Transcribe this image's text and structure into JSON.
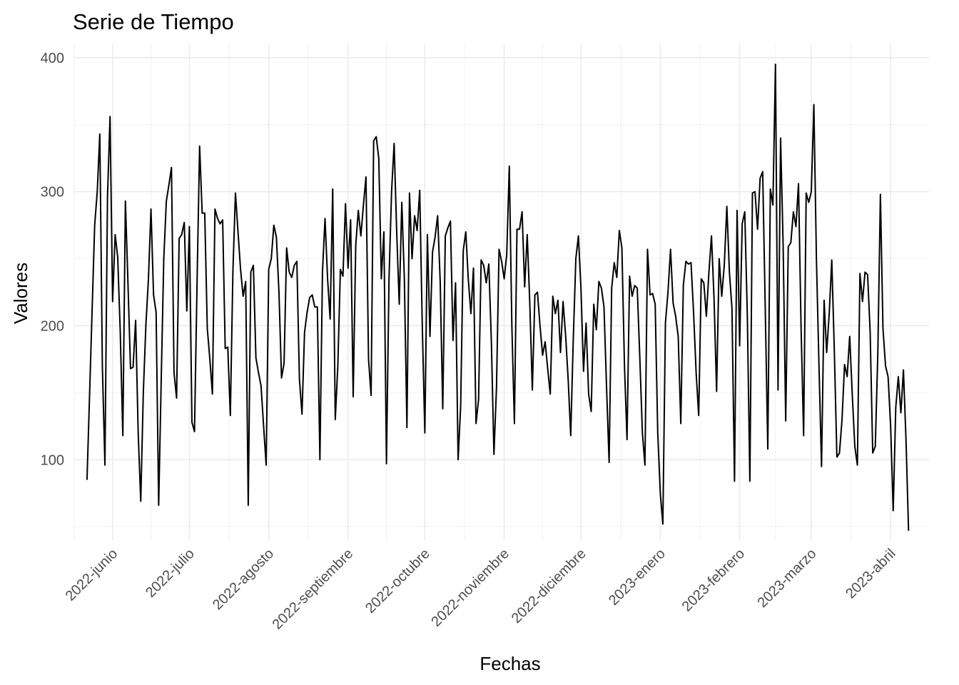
{
  "chart_data": {
    "type": "line",
    "title": "Serie de Tiempo",
    "xlabel": "Fechas",
    "ylabel": "Valores",
    "ylim": [
      40,
      410
    ],
    "yticks": [
      100,
      200,
      300,
      400
    ],
    "grid": true,
    "x_tick_labels": [
      "2022-junio",
      "2022-julio",
      "2022-agosto",
      "2022-septiembre",
      "2022-octubre",
      "2022-noviembre",
      "2022-diciembre",
      "2023-enero",
      "2023-febrero",
      "2023-marzo",
      "2023-abril"
    ],
    "x_tick_dates": [
      "2022-06-01",
      "2022-07-01",
      "2022-08-01",
      "2022-09-01",
      "2022-10-01",
      "2022-11-01",
      "2022-12-01",
      "2023-01-01",
      "2023-02-01",
      "2023-03-01",
      "2023-04-01"
    ],
    "xlim": [
      "2022-05-17",
      "2023-04-16"
    ],
    "series": [
      {
        "x_start": "2022-05-22",
        "step_days": 1,
        "values": [
          85,
          148,
          212,
          275,
          300,
          343,
          170,
          96,
          296,
          356,
          218,
          268,
          251,
          195,
          118,
          293,
          232,
          168,
          169,
          204,
          120,
          69,
          150,
          200,
          235,
          287,
          223,
          210,
          66,
          160,
          250,
          293,
          305,
          318,
          165,
          146,
          265,
          268,
          277,
          211,
          274,
          128,
          121,
          232,
          334,
          284,
          284,
          198,
          175,
          149,
          287,
          280,
          276,
          279,
          183,
          184,
          133,
          240,
          299,
          270,
          242,
          222,
          233,
          66,
          240,
          245,
          176,
          165,
          155,
          125,
          96,
          242,
          250,
          275,
          266,
          225,
          161,
          172,
          258,
          240,
          236,
          245,
          248,
          160,
          134,
          195,
          210,
          221,
          223,
          214,
          214,
          100,
          240,
          280,
          235,
          205,
          302,
          130,
          170,
          242,
          237,
          291,
          243,
          279,
          147,
          260,
          286,
          267,
          290,
          311,
          175,
          148,
          338,
          341,
          325,
          235,
          270,
          97,
          235,
          300,
          336,
          270,
          216,
          292,
          235,
          124,
          299,
          250,
          282,
          271,
          301,
          200,
          120,
          268,
          192,
          255,
          266,
          282,
          233,
          138,
          267,
          273,
          278,
          189,
          232,
          100,
          140,
          256,
          270,
          234,
          209,
          243,
          127,
          145,
          249,
          245,
          232,
          246,
          188,
          104,
          154,
          257,
          248,
          235,
          253,
          319,
          200,
          127,
          272,
          272,
          285,
          229,
          268,
          217,
          152,
          223,
          225,
          200,
          178,
          188,
          168,
          149,
          222,
          209,
          219,
          180,
          218,
          193,
          160,
          118,
          190,
          250,
          267,
          228,
          166,
          202,
          149,
          136,
          216,
          197,
          233,
          228,
          214,
          154,
          98,
          228,
          247,
          236,
          271,
          258,
          170,
          115,
          237,
          222,
          230,
          228,
          176,
          120,
          96,
          257,
          223,
          224,
          216,
          120,
          75,
          52,
          202,
          225,
          257,
          217,
          207,
          192,
          127,
          230,
          248,
          246,
          247,
          210,
          165,
          133,
          235,
          232,
          207,
          240,
          267,
          220,
          151,
          250,
          222,
          245,
          289,
          240,
          213,
          84,
          286,
          185,
          276,
          285,
          208,
          84,
          299,
          300,
          272,
          310,
          315,
          214,
          108,
          302,
          290,
          395,
          152,
          340,
          260,
          129,
          259,
          262,
          285,
          274,
          306,
          199,
          118,
          299,
          292,
          300,
          365,
          250,
          170,
          95,
          219,
          180,
          209,
          249,
          181,
          102,
          105,
          130,
          171,
          162,
          192,
          149,
          110,
          96,
          239,
          218,
          240,
          238,
          195,
          105,
          110,
          180,
          298,
          198,
          170,
          162,
          125,
          62,
          139,
          162,
          135,
          167,
          115,
          47
        ]
      }
    ]
  }
}
